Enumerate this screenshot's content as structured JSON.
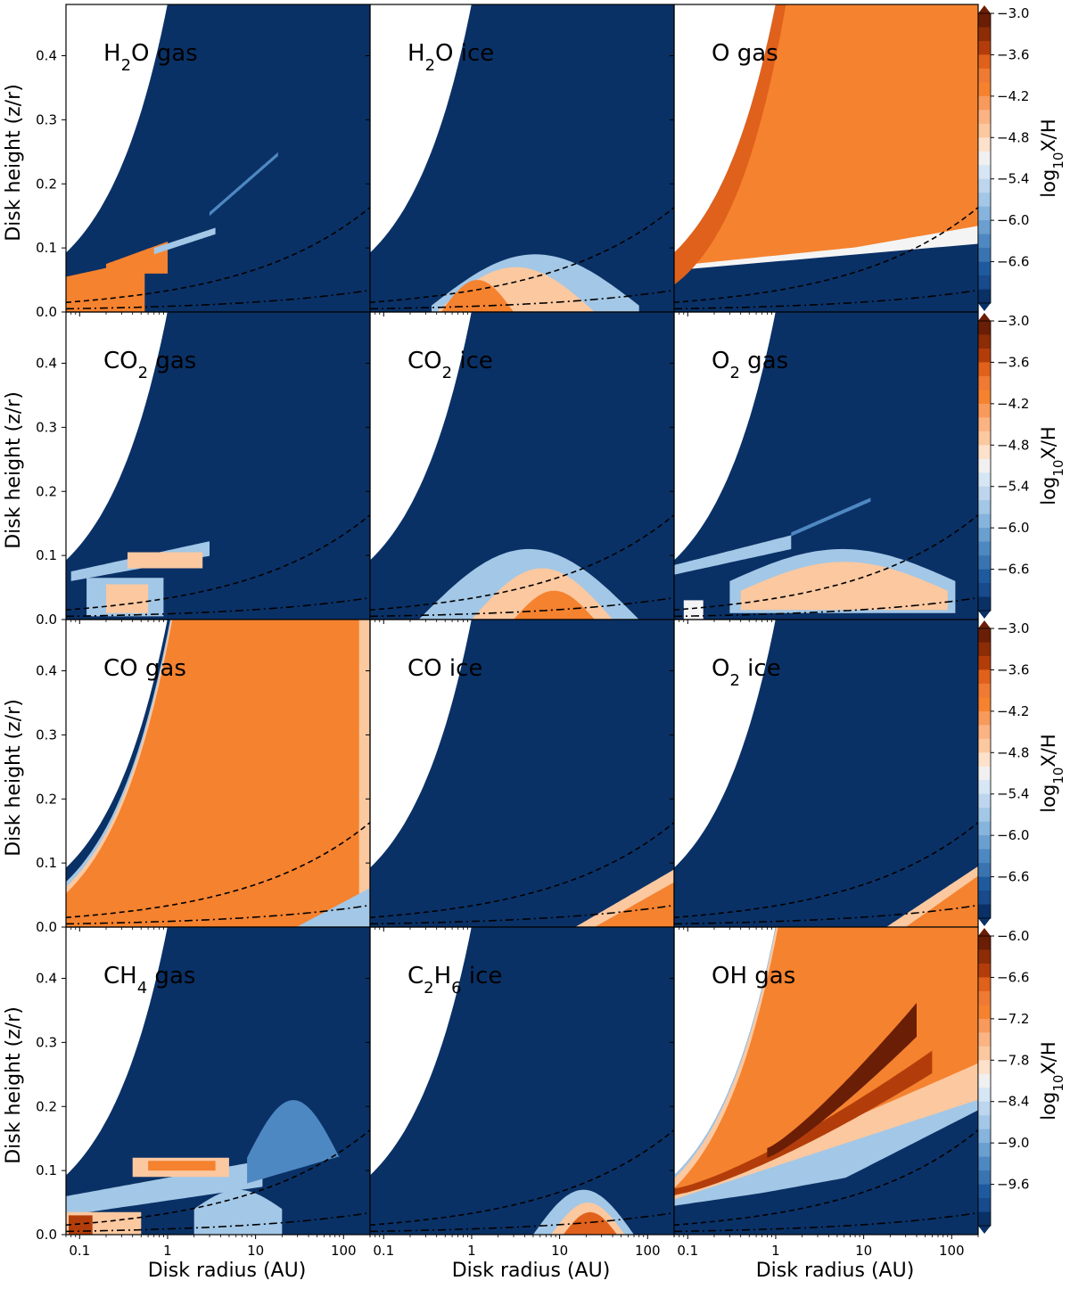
{
  "chart_data": {
    "type": "contour-grid",
    "rows": 4,
    "cols": 3,
    "xlabel": "Disk radius (AU)",
    "ylabel": "Disk height (z/r)",
    "xscale": "log",
    "xlim": [
      0.07,
      200
    ],
    "ylim": [
      0.0,
      0.48
    ],
    "xticks": [
      0.1,
      1,
      10,
      100
    ],
    "xtick_labels": [
      "0.1",
      "1",
      "10",
      "100"
    ],
    "yticks": [
      0.0,
      0.1,
      0.2,
      0.3,
      0.4
    ],
    "ytick_labels": [
      "0.0",
      "0.1",
      "0.2",
      "0.3",
      "0.4"
    ],
    "colormap_endpoints": [
      "#0a3166",
      "#ffffff",
      "#6a1e05"
    ],
    "background_color": "#0a3166",
    "panels": [
      {
        "id": "h2o-gas",
        "label_main": "H",
        "label_sub": "2",
        "label_tail": "O gas",
        "row": 0,
        "col": 0
      },
      {
        "id": "h2o-ice",
        "label_main": "H",
        "label_sub": "2",
        "label_tail": "O ice",
        "row": 0,
        "col": 1
      },
      {
        "id": "o-gas",
        "label_main": "O gas",
        "label_sub": "",
        "label_tail": "",
        "row": 0,
        "col": 2
      },
      {
        "id": "co2-gas",
        "label_main": "CO",
        "label_sub": "2",
        "label_tail": " gas",
        "row": 1,
        "col": 0
      },
      {
        "id": "co2-ice",
        "label_main": "CO",
        "label_sub": "2",
        "label_tail": " ice",
        "row": 1,
        "col": 1
      },
      {
        "id": "o2-gas",
        "label_main": "O",
        "label_sub": "2",
        "label_tail": " gas",
        "row": 1,
        "col": 2
      },
      {
        "id": "co-gas",
        "label_main": "CO gas",
        "label_sub": "",
        "label_tail": "",
        "row": 2,
        "col": 0
      },
      {
        "id": "co-ice",
        "label_main": "CO ice",
        "label_sub": "",
        "label_tail": "",
        "row": 2,
        "col": 1
      },
      {
        "id": "o2-ice",
        "label_main": "O",
        "label_sub": "2",
        "label_tail": " ice",
        "row": 2,
        "col": 2
      },
      {
        "id": "ch4-gas",
        "label_main": "CH",
        "label_sub": "4",
        "label_tail": " gas",
        "row": 3,
        "col": 0
      },
      {
        "id": "c2h6-ice",
        "label_main": "C",
        "label_sub": "2",
        "label_tail": "H",
        "label_sub2": "6",
        "label_tail2": " ice",
        "row": 3,
        "col": 1
      },
      {
        "id": "oh-gas",
        "label_main": "OH gas",
        "label_sub": "",
        "label_tail": "",
        "row": 3,
        "col": 2
      }
    ],
    "colorbars": [
      {
        "row": 0,
        "label_pre": "log",
        "label_sub": "10",
        "label_post": "X/H",
        "ticks": [
          -3.0,
          -3.6,
          -4.2,
          -4.8,
          -5.4,
          -6.0,
          -6.6
        ],
        "tick_labels": [
          "−3.0",
          "−3.6",
          "−4.2",
          "−4.8",
          "−5.4",
          "−6.0",
          "−6.6"
        ],
        "range": [
          -7.2,
          -3.0
        ]
      },
      {
        "row": 1,
        "label_pre": "log",
        "label_sub": "10",
        "label_post": "X/H",
        "ticks": [
          -3.0,
          -3.6,
          -4.2,
          -4.8,
          -5.4,
          -6.0,
          -6.6
        ],
        "tick_labels": [
          "−3.0",
          "−3.6",
          "−4.2",
          "−4.8",
          "−5.4",
          "−6.0",
          "−6.6"
        ],
        "range": [
          -7.2,
          -3.0
        ]
      },
      {
        "row": 2,
        "label_pre": "log",
        "label_sub": "10",
        "label_post": "X/H",
        "ticks": [
          -3.0,
          -3.6,
          -4.2,
          -4.8,
          -5.4,
          -6.0,
          -6.6
        ],
        "tick_labels": [
          "−3.0",
          "−3.6",
          "−4.2",
          "−4.8",
          "−5.4",
          "−6.0",
          "−6.6"
        ],
        "range": [
          -7.2,
          -3.0
        ]
      },
      {
        "row": 3,
        "label_pre": "log",
        "label_sub": "10",
        "label_post": "X/H",
        "ticks": [
          -6.0,
          -6.6,
          -7.2,
          -7.8,
          -8.4,
          -9.0,
          -9.6
        ],
        "tick_labels": [
          "−6.0",
          "−6.6",
          "−7.2",
          "−7.8",
          "−8.4",
          "−9.0",
          "−9.6"
        ],
        "range": [
          -10.2,
          -6.0
        ]
      }
    ]
  }
}
